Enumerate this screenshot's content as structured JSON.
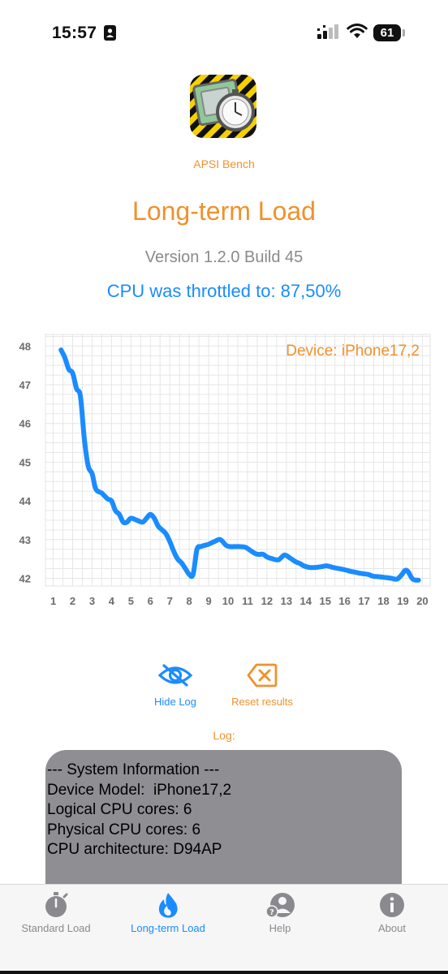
{
  "status_bar": {
    "time": "15:57",
    "battery": "61"
  },
  "header": {
    "app_name": "APSI Bench",
    "title": "Long-term Load",
    "version": "Version 1.2.0 Build 45",
    "throttle": "CPU was throttled to: 87,50%"
  },
  "chart_data": {
    "type": "line",
    "annotation": "Device: iPhone17,2",
    "x_ticks": [
      "1",
      "2",
      "3",
      "4",
      "5",
      "6",
      "7",
      "8",
      "9",
      "10",
      "11",
      "12",
      "13",
      "14",
      "15",
      "16",
      "17",
      "18",
      "19",
      "20"
    ],
    "y_ticks": [
      "48",
      "47",
      "46",
      "45",
      "44",
      "43",
      "42"
    ],
    "ylim": [
      41.8,
      48.3
    ],
    "xlim": [
      0.6,
      20.4
    ],
    "grid": true,
    "series": [
      {
        "color": "#1a8cff",
        "x": [
          1.4,
          1.6,
          1.8,
          2.0,
          2.2,
          2.4,
          2.6,
          2.8,
          3.0,
          3.2,
          3.5,
          3.8,
          4.0,
          4.2,
          4.4,
          4.6,
          4.8,
          5.0,
          5.3,
          5.6,
          5.8,
          6.0,
          6.2,
          6.4,
          6.6,
          6.8,
          7.0,
          7.2,
          7.4,
          7.6,
          7.8,
          8.0,
          8.2,
          8.4,
          8.6,
          8.8,
          9.0,
          9.3,
          9.6,
          9.9,
          10.1,
          10.3,
          10.6,
          10.9,
          11.2,
          11.5,
          11.8,
          12.0,
          12.3,
          12.6,
          12.9,
          13.2,
          13.5,
          13.7,
          13.9,
          14.2,
          14.5,
          14.8,
          15.1,
          15.4,
          15.7,
          16.0,
          16.3,
          16.6,
          16.9,
          17.2,
          17.5,
          17.8,
          18.1,
          18.4,
          18.7,
          18.95,
          19.1,
          19.25,
          19.5,
          19.8
        ],
        "y": [
          47.9,
          47.7,
          47.4,
          47.3,
          46.9,
          46.7,
          45.6,
          44.9,
          44.7,
          44.3,
          44.2,
          44.05,
          44.0,
          43.75,
          43.65,
          43.45,
          43.45,
          43.55,
          43.5,
          43.45,
          43.55,
          43.65,
          43.55,
          43.35,
          43.25,
          43.15,
          42.95,
          42.7,
          42.5,
          42.4,
          42.25,
          42.1,
          42.1,
          42.75,
          42.82,
          42.85,
          42.88,
          42.95,
          43.0,
          42.85,
          42.82,
          42.82,
          42.82,
          42.8,
          42.7,
          42.62,
          42.62,
          42.55,
          42.5,
          42.48,
          42.6,
          42.52,
          42.42,
          42.38,
          42.32,
          42.28,
          42.28,
          42.3,
          42.32,
          42.28,
          42.25,
          42.22,
          42.18,
          42.15,
          42.12,
          42.1,
          42.05,
          42.04,
          42.02,
          42.0,
          41.98,
          42.1,
          42.2,
          42.18,
          41.98,
          41.95
        ]
      }
    ]
  },
  "actions": {
    "hide_log": "Hide Log",
    "reset": "Reset results"
  },
  "log": {
    "label": "Log:",
    "lines": [
      "--- System Information ---",
      "Device Model:  iPhone17,2",
      "Logical CPU cores: 6",
      "Physical CPU cores: 6",
      "CPU architecture: D94AP"
    ]
  },
  "tabs": [
    {
      "label": "Standard Load",
      "icon": "stopwatch-icon",
      "active": false
    },
    {
      "label": "Long-term Load",
      "icon": "flame-icon",
      "active": true
    },
    {
      "label": "Help",
      "icon": "help-person-icon",
      "active": false
    },
    {
      "label": "About",
      "icon": "info-icon",
      "active": false
    }
  ],
  "colors": {
    "accent_orange": "#f0912d",
    "accent_blue": "#1a8cff",
    "log_bg": "#8e8e93"
  }
}
